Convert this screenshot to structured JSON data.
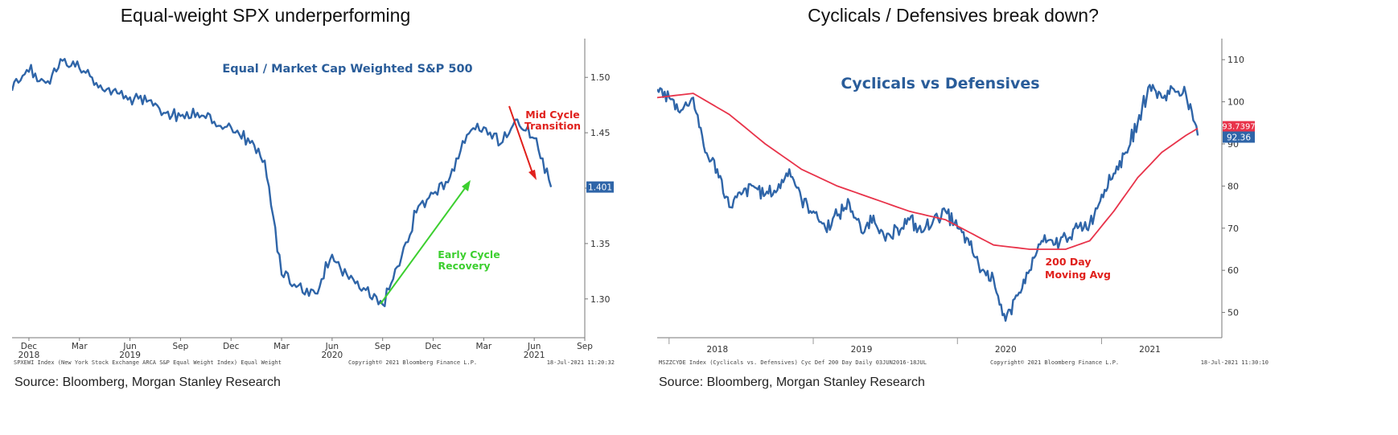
{
  "page": {
    "left_title": "Equal-weight SPX underperforming",
    "right_title": "Cyclicals / Defensives break down?",
    "left_source": "Source: Bloomberg, Morgan Stanley Research",
    "right_source": "Source: Bloomberg, Morgan Stanley Research"
  },
  "chart_data": [
    {
      "type": "line",
      "title": "Equal / Market Cap Weighted S&P 500",
      "x_range": [
        "2018-11",
        "2021-09"
      ],
      "ylim": [
        1.265,
        1.535
      ],
      "y_ticks": [
        "1.50",
        "1.45",
        "1.40",
        "1.35",
        "1.30"
      ],
      "x_ticks": [
        {
          "label": "Dec",
          "year": "2018",
          "date": "2018-12"
        },
        {
          "label": "Mar",
          "year": "",
          "date": "2019-03"
        },
        {
          "label": "Jun",
          "year": "2019",
          "date": "2019-06"
        },
        {
          "label": "Sep",
          "year": "",
          "date": "2019-09"
        },
        {
          "label": "Dec",
          "year": "",
          "date": "2019-12"
        },
        {
          "label": "Mar",
          "year": "",
          "date": "2020-03"
        },
        {
          "label": "Jun",
          "year": "2020",
          "date": "2020-06"
        },
        {
          "label": "Sep",
          "year": "",
          "date": "2020-09"
        },
        {
          "label": "Dec",
          "year": "",
          "date": "2020-12"
        },
        {
          "label": "Mar",
          "year": "",
          "date": "2021-03"
        },
        {
          "label": "Jun",
          "year": "2021",
          "date": "2021-06"
        },
        {
          "label": "Sep",
          "year": "",
          "date": "2021-09"
        }
      ],
      "series": [
        {
          "color": "#2f65a8",
          "points": [
            [
              "2018-11",
              1.488
            ],
            [
              "2018-12",
              1.505
            ],
            [
              "2019-01",
              1.495
            ],
            [
              "2019-02",
              1.515
            ],
            [
              "2019-03",
              1.508
            ],
            [
              "2019-04",
              1.495
            ],
            [
              "2019-05",
              1.488
            ],
            [
              "2019-06",
              1.482
            ],
            [
              "2019-07",
              1.478
            ],
            [
              "2019-08",
              1.468
            ],
            [
              "2019-09",
              1.465
            ],
            [
              "2019-10",
              1.468
            ],
            [
              "2019-11",
              1.46
            ],
            [
              "2019-12",
              1.455
            ],
            [
              "2020-01",
              1.445
            ],
            [
              "2020-02",
              1.425
            ],
            [
              "2020-03",
              1.322
            ],
            [
              "2020-04",
              1.312
            ],
            [
              "2020-05",
              1.305
            ],
            [
              "2020-06",
              1.34
            ],
            [
              "2020-07",
              1.318
            ],
            [
              "2020-08",
              1.308
            ],
            [
              "2020-09",
              1.295
            ],
            [
              "2020-10",
              1.33
            ],
            [
              "2020-11",
              1.378
            ],
            [
              "2020-12",
              1.395
            ],
            [
              "2021-01",
              1.41
            ],
            [
              "2021-02",
              1.448
            ],
            [
              "2021-03",
              1.455
            ],
            [
              "2021-04",
              1.44
            ],
            [
              "2021-05",
              1.462
            ],
            [
              "2021-06",
              1.445
            ],
            [
              "2021-07",
              1.401
            ]
          ]
        }
      ],
      "last_value_label": "1.401",
      "annotations": [
        {
          "text": "Mid Cycle",
          "color": "#e0201c"
        },
        {
          "text": "Transition",
          "color": "#e0201c"
        },
        {
          "text": "Early Cycle",
          "color": "#3ccf2f"
        },
        {
          "text": "Recovery",
          "color": "#3ccf2f"
        }
      ],
      "footer_left": "SPXEWI Index (New York Stock Exchange ARCA S&P Equal Weight Index) Equal Weight",
      "footer_copyright": "Copyright© 2021 Bloomberg Finance L.P.",
      "footer_date": "18-Jul-2021 11:20:32"
    },
    {
      "type": "line",
      "title": "Cyclicals vs Defensives",
      "x_range": [
        "2017-10",
        "2021-09"
      ],
      "ylim": [
        44,
        115
      ],
      "y_ticks": [
        "110",
        "100",
        "90",
        "80",
        "70",
        "60",
        "50"
      ],
      "x_ticks": [
        {
          "label": "2018",
          "date": "2018-01"
        },
        {
          "label": "2019",
          "date": "2019-01"
        },
        {
          "label": "2020",
          "date": "2020-01"
        },
        {
          "label": "2021",
          "date": "2021-01"
        }
      ],
      "series": [
        {
          "color": "#2f65a8",
          "points": [
            [
              "2017-10",
              103
            ],
            [
              "2017-11",
              101
            ],
            [
              "2017-12",
              98
            ],
            [
              "2018-01",
              101
            ],
            [
              "2018-02",
              88
            ],
            [
              "2018-03",
              84
            ],
            [
              "2018-04",
              75
            ],
            [
              "2018-05",
              78
            ],
            [
              "2018-06",
              80
            ],
            [
              "2018-07",
              78
            ],
            [
              "2018-08",
              79
            ],
            [
              "2018-09",
              84
            ],
            [
              "2018-10",
              77
            ],
            [
              "2018-11",
              74
            ],
            [
              "2018-12",
              70
            ],
            [
              "2019-01",
              73
            ],
            [
              "2019-02",
              76
            ],
            [
              "2019-03",
              69
            ],
            [
              "2019-04",
              73
            ],
            [
              "2019-05",
              67
            ],
            [
              "2019-06",
              70
            ],
            [
              "2019-07",
              72
            ],
            [
              "2019-08",
              69
            ],
            [
              "2019-09",
              72
            ],
            [
              "2019-10",
              74
            ],
            [
              "2019-11",
              70
            ],
            [
              "2019-12",
              66
            ],
            [
              "2020-01",
              60
            ],
            [
              "2020-02",
              58
            ],
            [
              "2020-03",
              48
            ],
            [
              "2020-04",
              54
            ],
            [
              "2020-05",
              60
            ],
            [
              "2020-06",
              67
            ],
            [
              "2020-07",
              66
            ],
            [
              "2020-08",
              68
            ],
            [
              "2020-09",
              70
            ],
            [
              "2020-10",
              71
            ],
            [
              "2020-11",
              78
            ],
            [
              "2020-12",
              83
            ],
            [
              "2021-01",
              88
            ],
            [
              "2021-02",
              95
            ],
            [
              "2021-03",
              104
            ],
            [
              "2021-04",
              101
            ],
            [
              "2021-05",
              103
            ],
            [
              "2021-06",
              102
            ],
            [
              "2021-07",
              92
            ]
          ]
        },
        {
          "name": "200 Day Moving Avg",
          "color": "#e8334a",
          "points": [
            [
              "2017-10",
              101
            ],
            [
              "2018-01",
              102
            ],
            [
              "2018-04",
              97
            ],
            [
              "2018-07",
              90
            ],
            [
              "2018-10",
              84
            ],
            [
              "2019-01",
              80
            ],
            [
              "2019-04",
              77
            ],
            [
              "2019-07",
              74
            ],
            [
              "2019-10",
              72
            ],
            [
              "2019-12",
              69
            ],
            [
              "2020-02",
              66
            ],
            [
              "2020-05",
              65
            ],
            [
              "2020-08",
              65
            ],
            [
              "2020-10",
              67
            ],
            [
              "2020-12",
              74
            ],
            [
              "2021-02",
              82
            ],
            [
              "2021-04",
              88
            ],
            [
              "2021-06",
              92
            ],
            [
              "2021-07",
              93.7
            ]
          ]
        }
      ],
      "last_value_labels": [
        "93.7397",
        "92.36"
      ],
      "annotations": [
        {
          "text": "200 Day",
          "color": "#e0201c"
        },
        {
          "text": "Moving Avg",
          "color": "#e0201c"
        }
      ],
      "footer_left": "MSZZCYDE Index (Cyclicals vs. Defensives) Cyc Def 200 Day  Daily 03JUN2016-18JUL",
      "footer_copyright": "Copyright© 2021 Bloomberg Finance L.P.",
      "footer_date": "18-Jul-2021 11:30:10"
    }
  ]
}
